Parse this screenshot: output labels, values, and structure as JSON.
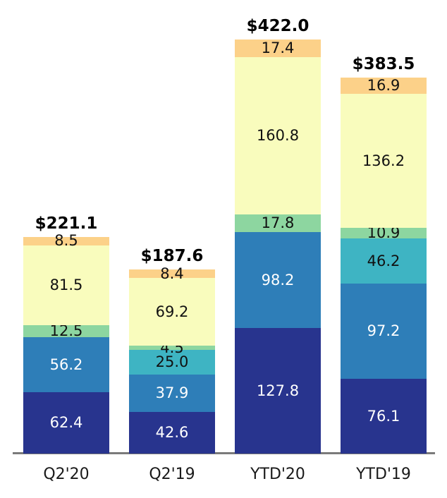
{
  "chart_data": {
    "type": "bar",
    "stacked": true,
    "orientation": "vertical",
    "title": "",
    "xlabel": "",
    "ylabel": "",
    "legend": "none",
    "grid": false,
    "axis_ticks": "none",
    "categories": [
      "Q2'20",
      "Q2'19",
      "YTD'20",
      "YTD'19"
    ],
    "totals": [
      "$221.1",
      "$187.6",
      "$422.0",
      "$383.5"
    ],
    "series_order": "bottom-to-top",
    "series": [
      {
        "name": "series-1-navy",
        "color": "#28348e",
        "label_color": "#ffffff",
        "values": [
          62.4,
          42.6,
          127.8,
          76.1
        ]
      },
      {
        "name": "series-2-blue",
        "color": "#2e7eb8",
        "label_color": "#ffffff",
        "values": [
          56.2,
          37.9,
          98.2,
          97.2
        ]
      },
      {
        "name": "series-3-teal",
        "color": "#3eb4c3",
        "label_color": "#111111",
        "values": [
          0,
          25.0,
          0,
          46.2
        ]
      },
      {
        "name": "series-4-green",
        "color": "#8dd6a0",
        "label_color": "#111111",
        "values": [
          12.5,
          4.5,
          17.8,
          10.9
        ]
      },
      {
        "name": "series-5-yellow",
        "color": "#f9fcbd",
        "label_color": "#111111",
        "values": [
          81.5,
          69.2,
          160.8,
          136.2
        ]
      },
      {
        "name": "series-6-orange",
        "color": "#fcd189",
        "label_color": "#111111",
        "values": [
          8.5,
          8.4,
          17.4,
          16.9
        ]
      }
    ],
    "value_label_format": "one-decimal"
  }
}
